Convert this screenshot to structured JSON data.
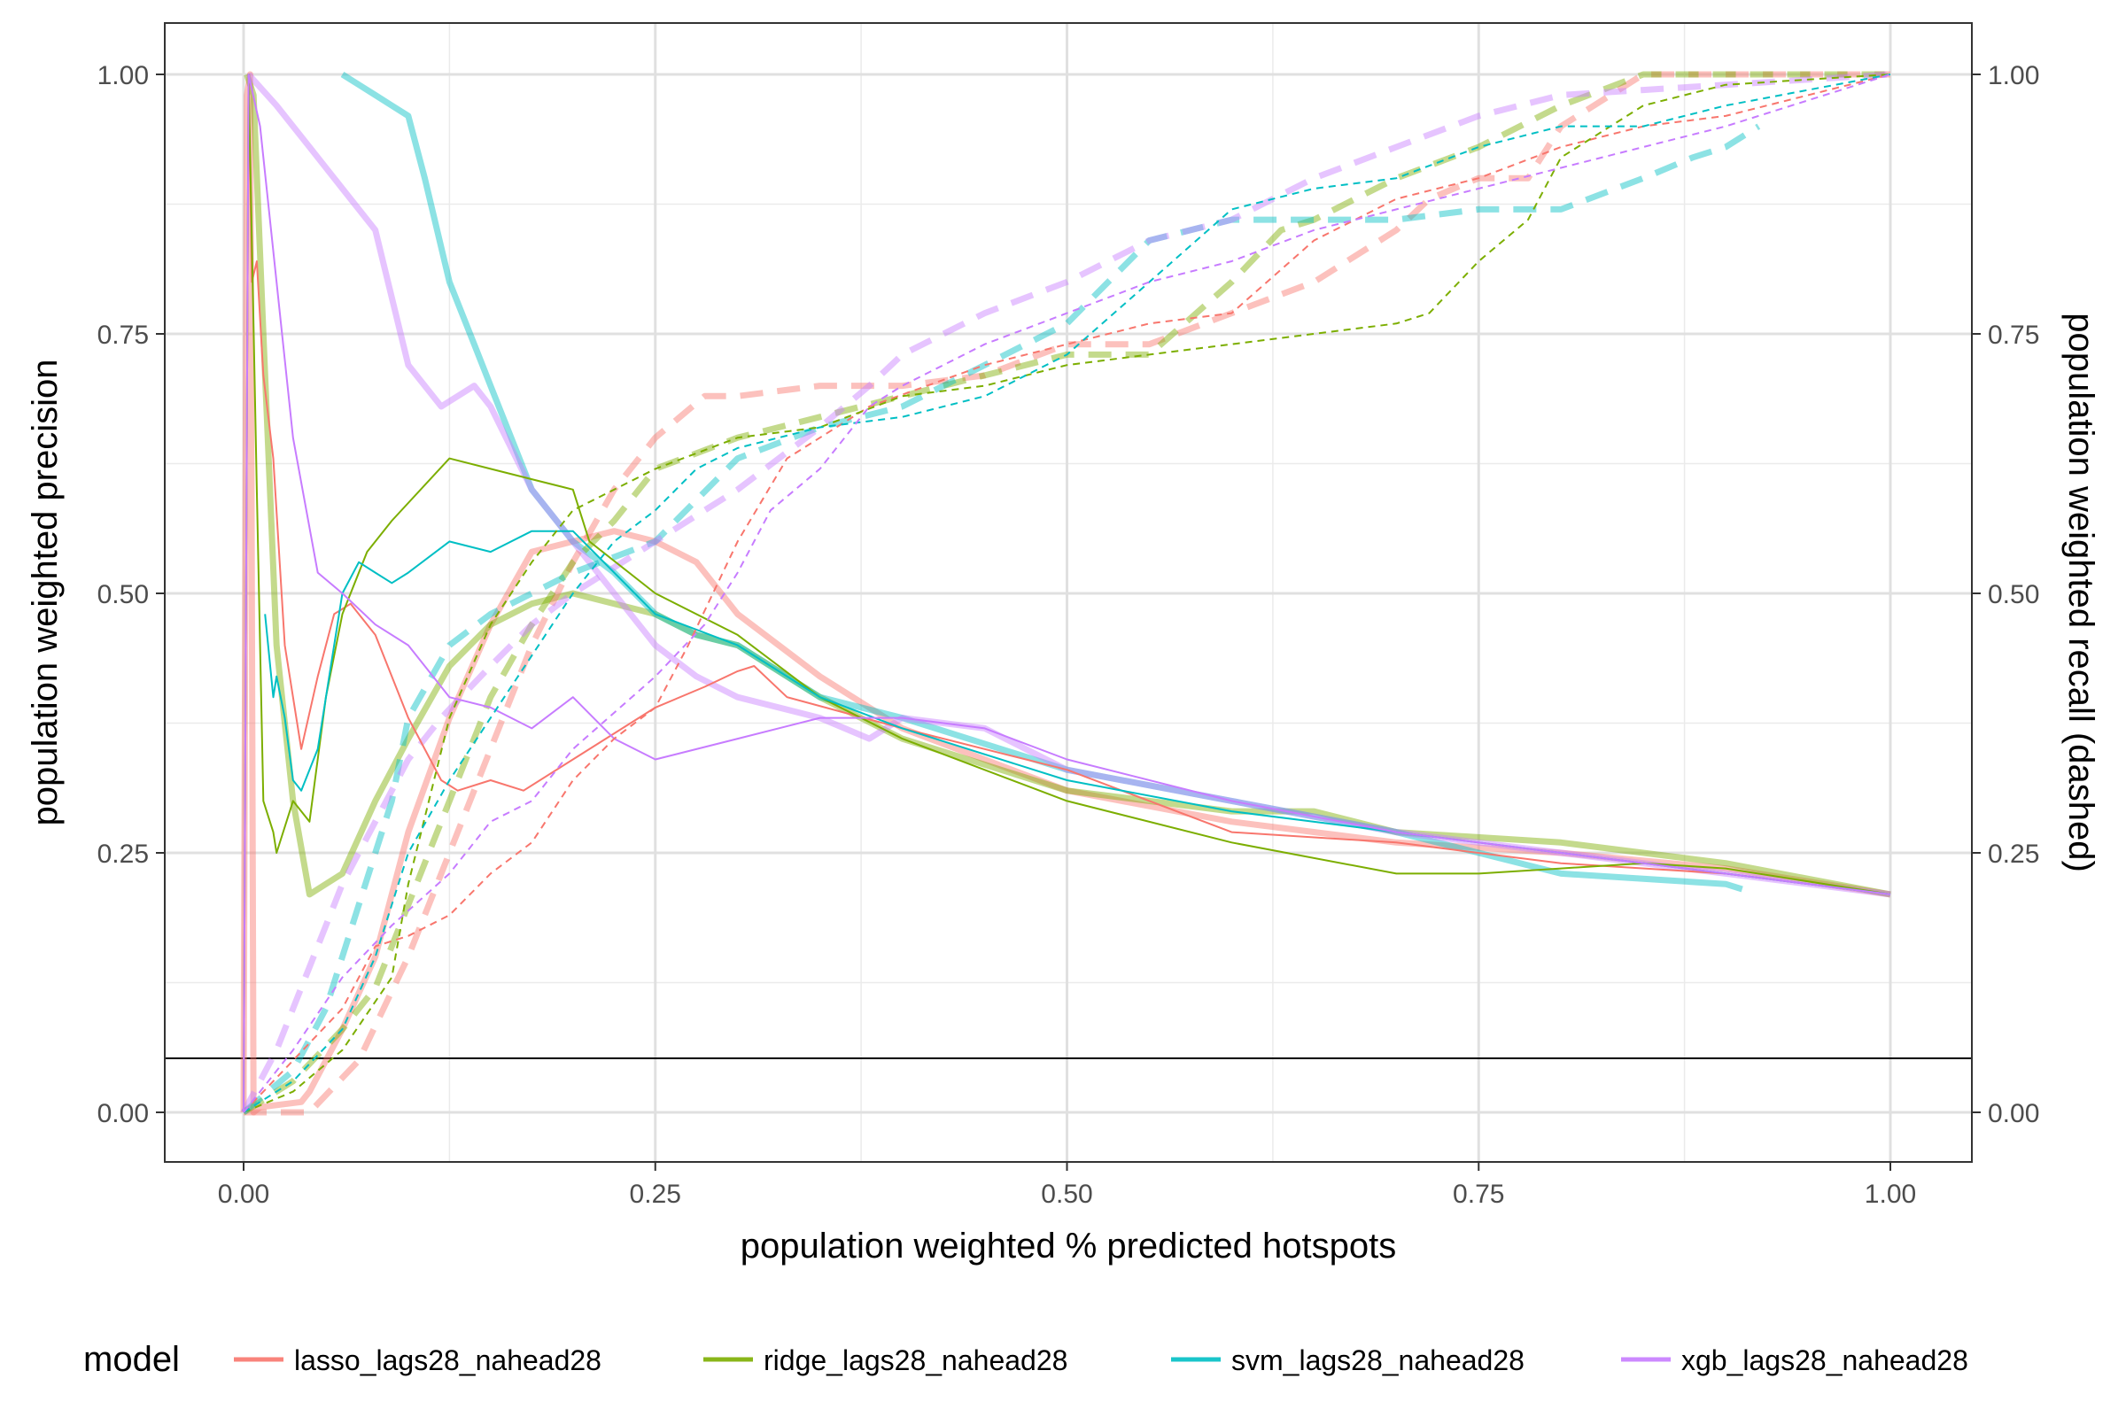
{
  "chart_data": {
    "type": "line",
    "xlabel": "population weighted % predicted hotspots",
    "ylabel": "population weighted precision",
    "y2label": "population weighted recall (dashed)",
    "xlim": [
      -0.05,
      1.05
    ],
    "ylim": [
      -0.05,
      1.0
    ],
    "x_ticks": [
      "0.00",
      "0.25",
      "0.50",
      "0.75",
      "1.00"
    ],
    "y_ticks": [
      "0.00",
      "0.25",
      "0.50",
      "0.75",
      "1.00"
    ],
    "y2_ticks": [
      "0.00",
      "0.25",
      "0.50",
      "0.75",
      "1.00"
    ],
    "grid": true,
    "baseline_y": 0.052,
    "legend": {
      "title": "model",
      "position": "bottom",
      "entries": [
        {
          "label": "lasso_lags28_nahead28",
          "color": "#F8766D"
        },
        {
          "label": "ridge_lags28_nahead28",
          "color": "#7CAE00"
        },
        {
          "label": "svm_lags28_nahead28",
          "color": "#00BFC4"
        },
        {
          "label": "xgb_lags28_nahead28",
          "color": "#C77CFF"
        }
      ]
    },
    "series": [
      {
        "model": "lasso_lags28_nahead28",
        "color": "#F8766D",
        "metric": "precision",
        "style": "thin-solid",
        "x": [
          0.0,
          0.003,
          0.005,
          0.008,
          0.012,
          0.018,
          0.025,
          0.035,
          0.045,
          0.055,
          0.065,
          0.08,
          0.1,
          0.12,
          0.13,
          0.15,
          0.17,
          0.2,
          0.25,
          0.28,
          0.3,
          0.31,
          0.33,
          0.4,
          0.5,
          0.6,
          0.7,
          0.8,
          0.9,
          1.0
        ],
        "y": [
          0.0,
          1.0,
          0.8,
          0.82,
          0.71,
          0.63,
          0.45,
          0.35,
          0.42,
          0.48,
          0.49,
          0.46,
          0.38,
          0.32,
          0.31,
          0.32,
          0.31,
          0.34,
          0.39,
          0.41,
          0.425,
          0.43,
          0.4,
          0.37,
          0.33,
          0.27,
          0.26,
          0.24,
          0.23,
          0.21
        ]
      },
      {
        "model": "lasso_lags28_nahead28",
        "color": "#F8766D",
        "metric": "precision",
        "style": "thick-solid",
        "x": [
          0.0,
          0.002,
          0.004,
          0.006,
          0.01,
          0.02,
          0.035,
          0.04,
          0.06,
          0.08,
          0.1,
          0.125,
          0.15,
          0.175,
          0.2,
          0.225,
          0.25,
          0.275,
          0.3,
          0.35,
          0.4,
          0.5,
          0.6,
          0.7,
          0.8,
          0.9,
          1.0
        ],
        "y": [
          0.0,
          0.98,
          1.0,
          0.0,
          0.005,
          0.007,
          0.01,
          0.02,
          0.08,
          0.15,
          0.27,
          0.38,
          0.47,
          0.54,
          0.55,
          0.56,
          0.55,
          0.53,
          0.48,
          0.42,
          0.37,
          0.31,
          0.28,
          0.26,
          0.25,
          0.235,
          0.21
        ]
      },
      {
        "model": "lasso_lags28_nahead28",
        "color": "#F8766D",
        "metric": "recall",
        "style": "thin-dashed",
        "x": [
          0.0,
          0.03,
          0.06,
          0.08,
          0.1,
          0.125,
          0.15,
          0.175,
          0.2,
          0.225,
          0.25,
          0.27,
          0.3,
          0.33,
          0.35,
          0.38,
          0.45,
          0.5,
          0.55,
          0.6,
          0.65,
          0.7,
          0.75,
          0.8,
          0.85,
          0.9,
          1.0
        ],
        "y": [
          0.0,
          0.05,
          0.1,
          0.16,
          0.17,
          0.19,
          0.23,
          0.26,
          0.32,
          0.36,
          0.39,
          0.45,
          0.55,
          0.63,
          0.65,
          0.68,
          0.72,
          0.74,
          0.76,
          0.77,
          0.84,
          0.88,
          0.9,
          0.93,
          0.95,
          0.96,
          1.0
        ]
      },
      {
        "model": "lasso_lags28_nahead28",
        "color": "#F8766D",
        "metric": "recall",
        "style": "thick-dashed",
        "x": [
          0.0,
          0.04,
          0.07,
          0.1,
          0.125,
          0.15,
          0.175,
          0.2,
          0.225,
          0.25,
          0.28,
          0.3,
          0.35,
          0.4,
          0.45,
          0.5,
          0.55,
          0.6,
          0.65,
          0.7,
          0.72,
          0.75,
          0.78,
          0.8,
          0.85,
          0.9,
          1.0
        ],
        "y": [
          0.0,
          0.0,
          0.05,
          0.15,
          0.25,
          0.35,
          0.45,
          0.53,
          0.6,
          0.65,
          0.69,
          0.69,
          0.7,
          0.7,
          0.71,
          0.74,
          0.74,
          0.77,
          0.8,
          0.85,
          0.88,
          0.9,
          0.9,
          0.95,
          1.0,
          1.0,
          1.0
        ]
      },
      {
        "model": "ridge_lags28_nahead28",
        "color": "#7CAE00",
        "metric": "precision",
        "style": "thin-solid",
        "x": [
          0.0,
          0.003,
          0.008,
          0.012,
          0.018,
          0.02,
          0.03,
          0.04,
          0.05,
          0.06,
          0.075,
          0.09,
          0.125,
          0.15,
          0.175,
          0.2,
          0.21,
          0.25,
          0.3,
          0.35,
          0.4,
          0.5,
          0.6,
          0.7,
          0.75,
          0.8,
          0.85,
          0.9,
          1.0
        ],
        "y": [
          0.0,
          1.0,
          0.6,
          0.3,
          0.27,
          0.25,
          0.3,
          0.28,
          0.4,
          0.48,
          0.54,
          0.57,
          0.63,
          0.62,
          0.61,
          0.6,
          0.55,
          0.5,
          0.46,
          0.4,
          0.36,
          0.3,
          0.26,
          0.23,
          0.23,
          0.235,
          0.24,
          0.235,
          0.21
        ]
      },
      {
        "model": "ridge_lags28_nahead28",
        "color": "#7CAE00",
        "metric": "precision",
        "style": "thick-solid",
        "x": [
          0.002,
          0.006,
          0.012,
          0.02,
          0.03,
          0.04,
          0.05,
          0.06,
          0.08,
          0.1,
          0.125,
          0.15,
          0.175,
          0.2,
          0.225,
          0.25,
          0.275,
          0.3,
          0.35,
          0.4,
          0.5,
          0.6,
          0.65,
          0.7,
          0.8,
          0.9,
          1.0
        ],
        "y": [
          1.0,
          0.98,
          0.75,
          0.45,
          0.3,
          0.21,
          0.22,
          0.23,
          0.3,
          0.36,
          0.43,
          0.47,
          0.49,
          0.5,
          0.49,
          0.48,
          0.46,
          0.45,
          0.4,
          0.36,
          0.31,
          0.29,
          0.29,
          0.27,
          0.26,
          0.24,
          0.21
        ]
      },
      {
        "model": "ridge_lags28_nahead28",
        "color": "#7CAE00",
        "metric": "recall",
        "style": "thin-dashed",
        "x": [
          0.0,
          0.03,
          0.06,
          0.09,
          0.1,
          0.125,
          0.15,
          0.175,
          0.2,
          0.225,
          0.25,
          0.3,
          0.35,
          0.4,
          0.45,
          0.5,
          0.55,
          0.6,
          0.65,
          0.7,
          0.72,
          0.75,
          0.78,
          0.8,
          0.85,
          0.9,
          1.0
        ],
        "y": [
          0.0,
          0.02,
          0.06,
          0.13,
          0.22,
          0.38,
          0.47,
          0.53,
          0.58,
          0.6,
          0.62,
          0.65,
          0.66,
          0.69,
          0.7,
          0.72,
          0.73,
          0.74,
          0.75,
          0.76,
          0.77,
          0.82,
          0.86,
          0.92,
          0.97,
          0.99,
          1.0
        ]
      },
      {
        "model": "ridge_lags28_nahead28",
        "color": "#7CAE00",
        "metric": "recall",
        "style": "thick-dashed",
        "x": [
          0.0,
          0.03,
          0.06,
          0.08,
          0.1,
          0.125,
          0.15,
          0.175,
          0.2,
          0.225,
          0.25,
          0.3,
          0.35,
          0.4,
          0.45,
          0.5,
          0.55,
          0.6,
          0.63,
          0.65,
          0.7,
          0.75,
          0.8,
          0.85,
          0.9,
          1.0
        ],
        "y": [
          0.0,
          0.03,
          0.08,
          0.12,
          0.2,
          0.3,
          0.4,
          0.47,
          0.53,
          0.57,
          0.62,
          0.65,
          0.67,
          0.69,
          0.71,
          0.73,
          0.73,
          0.8,
          0.85,
          0.86,
          0.9,
          0.93,
          0.97,
          1.0,
          1.0,
          1.0
        ]
      },
      {
        "model": "svm_lags28_nahead28",
        "color": "#00BFC4",
        "metric": "precision",
        "style": "thin-solid",
        "x": [
          0.013,
          0.018,
          0.02,
          0.025,
          0.03,
          0.035,
          0.045,
          0.055,
          0.06,
          0.07,
          0.08,
          0.09,
          0.1,
          0.125,
          0.15,
          0.175,
          0.2,
          0.25,
          0.3,
          0.35,
          0.4,
          0.5,
          0.6,
          0.7,
          0.8,
          0.9,
          1.0
        ],
        "y": [
          0.48,
          0.4,
          0.42,
          0.38,
          0.32,
          0.31,
          0.35,
          0.45,
          0.5,
          0.53,
          0.52,
          0.51,
          0.52,
          0.55,
          0.54,
          0.56,
          0.56,
          0.48,
          0.45,
          0.4,
          0.37,
          0.32,
          0.29,
          0.27,
          0.25,
          0.23,
          0.21
        ]
      },
      {
        "model": "svm_lags28_nahead28",
        "color": "#00BFC4",
        "metric": "precision",
        "style": "thick-solid",
        "x": [
          0.06,
          0.07,
          0.08,
          0.09,
          0.1,
          0.11,
          0.125,
          0.14,
          0.15,
          0.175,
          0.2,
          0.225,
          0.25,
          0.275,
          0.3,
          0.35,
          0.4,
          0.5,
          0.6,
          0.7,
          0.75,
          0.8,
          0.85,
          0.9,
          0.91
        ],
        "y": [
          1.0,
          0.99,
          0.98,
          0.97,
          0.96,
          0.9,
          0.8,
          0.74,
          0.7,
          0.6,
          0.55,
          0.52,
          0.48,
          0.46,
          0.45,
          0.4,
          0.38,
          0.33,
          0.3,
          0.27,
          0.25,
          0.23,
          0.225,
          0.22,
          0.215
        ]
      },
      {
        "model": "svm_lags28_nahead28",
        "color": "#00BFC4",
        "metric": "recall",
        "style": "thin-dashed",
        "x": [
          0.0,
          0.03,
          0.06,
          0.08,
          0.1,
          0.125,
          0.15,
          0.175,
          0.2,
          0.225,
          0.25,
          0.275,
          0.3,
          0.35,
          0.4,
          0.45,
          0.5,
          0.55,
          0.6,
          0.65,
          0.7,
          0.75,
          0.8,
          0.85,
          0.9,
          1.0
        ],
        "y": [
          0.0,
          0.03,
          0.08,
          0.15,
          0.25,
          0.32,
          0.38,
          0.44,
          0.5,
          0.55,
          0.58,
          0.62,
          0.64,
          0.66,
          0.67,
          0.69,
          0.73,
          0.8,
          0.87,
          0.89,
          0.9,
          0.93,
          0.95,
          0.95,
          0.97,
          1.0
        ]
      },
      {
        "model": "svm_lags28_nahead28",
        "color": "#00BFC4",
        "metric": "recall",
        "style": "thick-dashed",
        "x": [
          0.0,
          0.03,
          0.05,
          0.07,
          0.09,
          0.1,
          0.125,
          0.15,
          0.175,
          0.2,
          0.25,
          0.3,
          0.35,
          0.4,
          0.45,
          0.5,
          0.55,
          0.6,
          0.65,
          0.7,
          0.75,
          0.8,
          0.85,
          0.88,
          0.9,
          0.92
        ],
        "y": [
          0.0,
          0.04,
          0.1,
          0.2,
          0.3,
          0.38,
          0.45,
          0.48,
          0.5,
          0.52,
          0.55,
          0.63,
          0.66,
          0.68,
          0.72,
          0.76,
          0.84,
          0.86,
          0.86,
          0.86,
          0.87,
          0.87,
          0.9,
          0.92,
          0.93,
          0.95
        ]
      },
      {
        "model": "xgb_lags28_nahead28",
        "color": "#C77CFF",
        "metric": "precision",
        "style": "thin-solid",
        "x": [
          0.0,
          0.003,
          0.01,
          0.02,
          0.03,
          0.045,
          0.06,
          0.08,
          0.1,
          0.125,
          0.15,
          0.175,
          0.2,
          0.225,
          0.25,
          0.3,
          0.35,
          0.4,
          0.45,
          0.5,
          0.6,
          0.7,
          0.8,
          0.9,
          1.0
        ],
        "y": [
          0.0,
          1.0,
          0.95,
          0.8,
          0.65,
          0.52,
          0.5,
          0.47,
          0.45,
          0.4,
          0.39,
          0.37,
          0.4,
          0.36,
          0.34,
          0.36,
          0.38,
          0.38,
          0.37,
          0.34,
          0.3,
          0.27,
          0.25,
          0.23,
          0.21
        ]
      },
      {
        "model": "xgb_lags28_nahead28",
        "color": "#C77CFF",
        "metric": "precision",
        "style": "thick-solid",
        "x": [
          0.003,
          0.02,
          0.04,
          0.06,
          0.08,
          0.1,
          0.12,
          0.13,
          0.14,
          0.15,
          0.175,
          0.2,
          0.225,
          0.25,
          0.275,
          0.3,
          0.35,
          0.38,
          0.4,
          0.45,
          0.5,
          0.6,
          0.7,
          0.8,
          0.9,
          1.0
        ],
        "y": [
          1.0,
          0.97,
          0.93,
          0.89,
          0.85,
          0.72,
          0.68,
          0.69,
          0.7,
          0.68,
          0.6,
          0.55,
          0.5,
          0.45,
          0.42,
          0.4,
          0.38,
          0.36,
          0.38,
          0.37,
          0.33,
          0.3,
          0.27,
          0.25,
          0.23,
          0.21
        ]
      },
      {
        "model": "xgb_lags28_nahead28",
        "color": "#C77CFF",
        "metric": "recall",
        "style": "thin-dashed",
        "x": [
          0.0,
          0.03,
          0.06,
          0.09,
          0.125,
          0.15,
          0.175,
          0.2,
          0.25,
          0.28,
          0.3,
          0.32,
          0.35,
          0.38,
          0.4,
          0.45,
          0.5,
          0.55,
          0.6,
          0.65,
          0.7,
          0.75,
          0.8,
          0.85,
          0.9,
          1.0
        ],
        "y": [
          0.0,
          0.06,
          0.13,
          0.18,
          0.23,
          0.28,
          0.3,
          0.35,
          0.42,
          0.47,
          0.52,
          0.58,
          0.62,
          0.68,
          0.7,
          0.74,
          0.77,
          0.8,
          0.82,
          0.85,
          0.87,
          0.89,
          0.91,
          0.93,
          0.95,
          1.0
        ]
      },
      {
        "model": "xgb_lags28_nahead28",
        "color": "#C77CFF",
        "metric": "recall",
        "style": "thick-dashed",
        "x": [
          0.0,
          0.02,
          0.04,
          0.06,
          0.08,
          0.1,
          0.12,
          0.15,
          0.175,
          0.2,
          0.25,
          0.28,
          0.3,
          0.35,
          0.38,
          0.4,
          0.45,
          0.5,
          0.55,
          0.6,
          0.65,
          0.7,
          0.75,
          0.8,
          0.85,
          0.9,
          1.0
        ],
        "y": [
          0.0,
          0.06,
          0.14,
          0.22,
          0.28,
          0.34,
          0.38,
          0.43,
          0.47,
          0.5,
          0.55,
          0.58,
          0.6,
          0.66,
          0.7,
          0.73,
          0.77,
          0.8,
          0.84,
          0.86,
          0.9,
          0.93,
          0.96,
          0.98,
          0.985,
          0.99,
          1.0
        ]
      }
    ]
  }
}
